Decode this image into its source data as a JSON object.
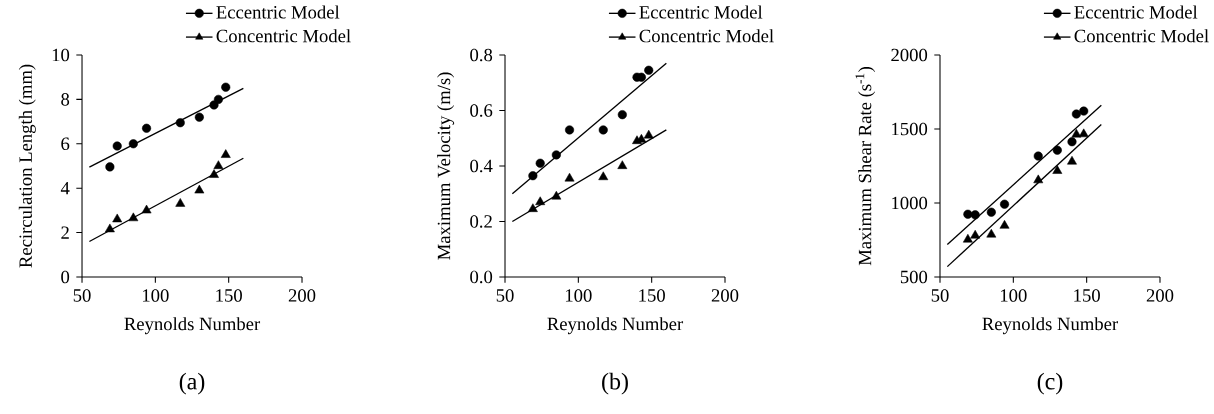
{
  "chart_data": [
    {
      "type": "scatter",
      "xlabel": "Reynolds Number",
      "ylabel": "Recirculation Length (mm)",
      "xlim": [
        50,
        200
      ],
      "ylim": [
        0,
        10
      ],
      "xticks": [
        50,
        100,
        150,
        200
      ],
      "yticks": [
        0,
        2,
        4,
        6,
        8,
        10
      ],
      "legend": "top",
      "annotations": [
        "(a)"
      ],
      "series": [
        {
          "name": "Eccentric Model",
          "marker": "circle",
          "color": "#000000",
          "x": [
            69,
            74,
            85,
            94,
            117,
            130,
            140,
            143,
            148
          ],
          "values": [
            4.96,
            5.9,
            6.0,
            6.7,
            6.95,
            7.2,
            7.75,
            8.0,
            8.55
          ]
        },
        {
          "name": "Concentric Model",
          "marker": "triangle",
          "color": "#000000",
          "x": [
            69,
            74,
            85,
            94,
            117,
            130,
            140,
            143,
            148
          ],
          "values": [
            2.15,
            2.6,
            2.65,
            3.0,
            3.3,
            3.9,
            4.6,
            5.0,
            5.5
          ]
        },
        {
          "type": "line",
          "color": "#000000",
          "x": [
            55,
            160
          ],
          "values": [
            4.95,
            8.5
          ]
        },
        {
          "type": "line",
          "color": "#000000",
          "x": [
            55,
            160
          ],
          "values": [
            1.6,
            5.35
          ]
        }
      ]
    },
    {
      "type": "scatter",
      "xlabel": "Reynolds Number",
      "ylabel": "Maximum Velocity (m/s)",
      "xlim": [
        50,
        200
      ],
      "ylim": [
        0,
        0.8
      ],
      "xticks": [
        50,
        100,
        150,
        200
      ],
      "yticks": [
        {
          "value": 0,
          "label": "0.0"
        },
        0.2,
        0.4,
        0.6,
        0.8
      ],
      "legend": "top",
      "annotations": [
        "(b)"
      ],
      "series": [
        {
          "name": "Eccentric Model",
          "marker": "circle",
          "color": "#000000",
          "x": [
            69,
            74,
            85,
            94,
            117,
            130,
            140,
            143,
            148
          ],
          "values": [
            0.365,
            0.41,
            0.44,
            0.53,
            0.53,
            0.585,
            0.72,
            0.72,
            0.745
          ]
        },
        {
          "name": "Concentric Model",
          "marker": "triangle",
          "color": "#000000",
          "x": [
            69,
            74,
            85,
            94,
            117,
            130,
            140,
            143,
            148
          ],
          "values": [
            0.245,
            0.27,
            0.29,
            0.355,
            0.36,
            0.4,
            0.49,
            0.495,
            0.51
          ]
        },
        {
          "type": "line",
          "color": "#000000",
          "x": [
            55,
            160
          ],
          "values": [
            0.3,
            0.77
          ]
        },
        {
          "type": "line",
          "color": "#000000",
          "x": [
            55,
            160
          ],
          "values": [
            0.2,
            0.53
          ]
        }
      ]
    },
    {
      "type": "scatter",
      "xlabel": "Reynolds Number",
      "ylabel": "Maximum Shear Rate (s$^{-1}$)",
      "xlim": [
        50,
        200
      ],
      "ylim": [
        500,
        2000
      ],
      "xticks": [
        50,
        100,
        150,
        200
      ],
      "yticks": [
        500,
        1000,
        1500,
        2000
      ],
      "legend": "top",
      "annotations": [
        "(c)"
      ],
      "series": [
        {
          "name": "Eccentric Model",
          "marker": "circle",
          "color": "#000000",
          "x": [
            69,
            74,
            85,
            94,
            117,
            130,
            140,
            143,
            148
          ],
          "values": [
            924,
            920,
            938,
            992,
            1317,
            1357,
            1414,
            1601,
            1621
          ]
        },
        {
          "name": "Concentric Model",
          "marker": "triangle",
          "color": "#000000",
          "x": [
            69,
            74,
            85,
            94,
            117,
            130,
            140,
            143,
            148
          ],
          "values": [
            753,
            780,
            787,
            847,
            1154,
            1217,
            1280,
            1463,
            1465
          ]
        },
        {
          "type": "line",
          "color": "#000000",
          "x": [
            55,
            160
          ],
          "values": [
            720,
            1660
          ]
        },
        {
          "type": "line",
          "color": "#000000",
          "x": [
            55,
            160
          ],
          "values": [
            570,
            1530
          ]
        }
      ]
    }
  ]
}
